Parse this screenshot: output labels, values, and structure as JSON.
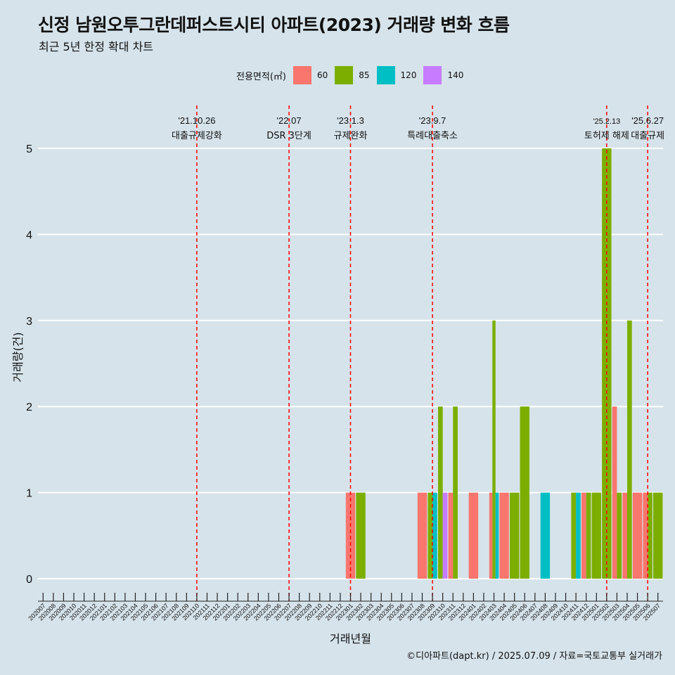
{
  "title": "신정 남원오투그란데퍼스트시티 아파트(2023) 거래량 변화 흐름",
  "subtitle": "최근 5년 한정 확대 차트",
  "caption": "©디아파트(dapt.kr) / 2025.07.09 / 자료=국토교통부 실거래가",
  "legend": {
    "title": "전용면적(㎡)",
    "items": [
      {
        "label": "60",
        "color": "#f8766d"
      },
      {
        "label": "85",
        "color": "#7cae00"
      },
      {
        "label": "120",
        "color": "#00bfc4"
      },
      {
        "label": "140",
        "color": "#c77cff"
      }
    ]
  },
  "chart_data": {
    "type": "bar",
    "xlabel": "거래년월",
    "ylabel": "거래량(건)",
    "ylim": [
      0,
      5
    ],
    "yticks": [
      0,
      1,
      2,
      3,
      4,
      5
    ],
    "categories": [
      "202007",
      "202008",
      "202009",
      "202010",
      "202011",
      "202012",
      "202101",
      "202102",
      "202103",
      "202104",
      "202105",
      "202106",
      "202107",
      "202108",
      "202109",
      "202110",
      "202111",
      "202112",
      "202201",
      "202202",
      "202203",
      "202204",
      "202205",
      "202206",
      "202207",
      "202208",
      "202209",
      "202210",
      "202211",
      "202212",
      "202301",
      "202302",
      "202303",
      "202304",
      "202305",
      "202306",
      "202307",
      "202308",
      "202309",
      "202310",
      "202311",
      "202312",
      "202401",
      "202402",
      "202403",
      "202404",
      "202405",
      "202406",
      "202407",
      "202408",
      "202409",
      "202410",
      "202411",
      "202412",
      "202501",
      "202502",
      "202503",
      "202504",
      "202505",
      "202506",
      "202507"
    ],
    "bars": [
      {
        "month": "202301",
        "area": "60",
        "value": 1
      },
      {
        "month": "202302",
        "area": "85",
        "value": 1
      },
      {
        "month": "202308",
        "area": "60",
        "value": 1
      },
      {
        "month": "202309",
        "area": "85",
        "value": 1
      },
      {
        "month": "202309",
        "area": "120",
        "value": 1
      },
      {
        "month": "202310",
        "area": "85",
        "value": 2
      },
      {
        "month": "202310",
        "area": "140",
        "value": 1
      },
      {
        "month": "202311",
        "area": "60",
        "value": 1
      },
      {
        "month": "202311",
        "area": "85",
        "value": 2
      },
      {
        "month": "202401",
        "area": "60",
        "value": 1
      },
      {
        "month": "202403",
        "area": "60",
        "value": 1
      },
      {
        "month": "202403",
        "area": "85",
        "value": 3
      },
      {
        "month": "202403",
        "area": "120",
        "value": 1
      },
      {
        "month": "202404",
        "area": "60",
        "value": 1
      },
      {
        "month": "202405",
        "area": "85",
        "value": 1
      },
      {
        "month": "202406",
        "area": "85",
        "value": 2
      },
      {
        "month": "202408",
        "area": "120",
        "value": 1
      },
      {
        "month": "202411",
        "area": "85",
        "value": 1
      },
      {
        "month": "202411",
        "area": "120",
        "value": 1
      },
      {
        "month": "202412",
        "area": "60",
        "value": 1
      },
      {
        "month": "202412",
        "area": "85",
        "value": 1
      },
      {
        "month": "202501",
        "area": "85",
        "value": 1
      },
      {
        "month": "202502",
        "area": "85",
        "value": 5
      },
      {
        "month": "202503",
        "area": "60",
        "value": 2
      },
      {
        "month": "202503",
        "area": "85",
        "value": 1
      },
      {
        "month": "202504",
        "area": "60",
        "value": 1
      },
      {
        "month": "202504",
        "area": "85",
        "value": 3
      },
      {
        "month": "202505",
        "area": "60",
        "value": 1
      },
      {
        "month": "202506",
        "area": "60",
        "value": 1
      },
      {
        "month": "202506",
        "area": "85",
        "value": 1
      },
      {
        "month": "202507",
        "area": "85",
        "value": 1
      }
    ],
    "annotations": [
      {
        "month": "202110",
        "date": "'21.10.26",
        "label": "대출규제강화"
      },
      {
        "month": "202207",
        "date": "'22.07",
        "label": "DSR 3단계"
      },
      {
        "month": "202301",
        "date": "'23.1.3",
        "label": "규제완화"
      },
      {
        "month": "202309",
        "date": "'23.9.7",
        "label": "특례대출축소"
      },
      {
        "month": "202502",
        "date": "'25.2.13",
        "label": "토허제 해제"
      },
      {
        "month": "202506",
        "date": "'25.6.27",
        "label": "대출규제"
      }
    ],
    "annotation_color": "#ff0000",
    "grid": "horizontal"
  }
}
